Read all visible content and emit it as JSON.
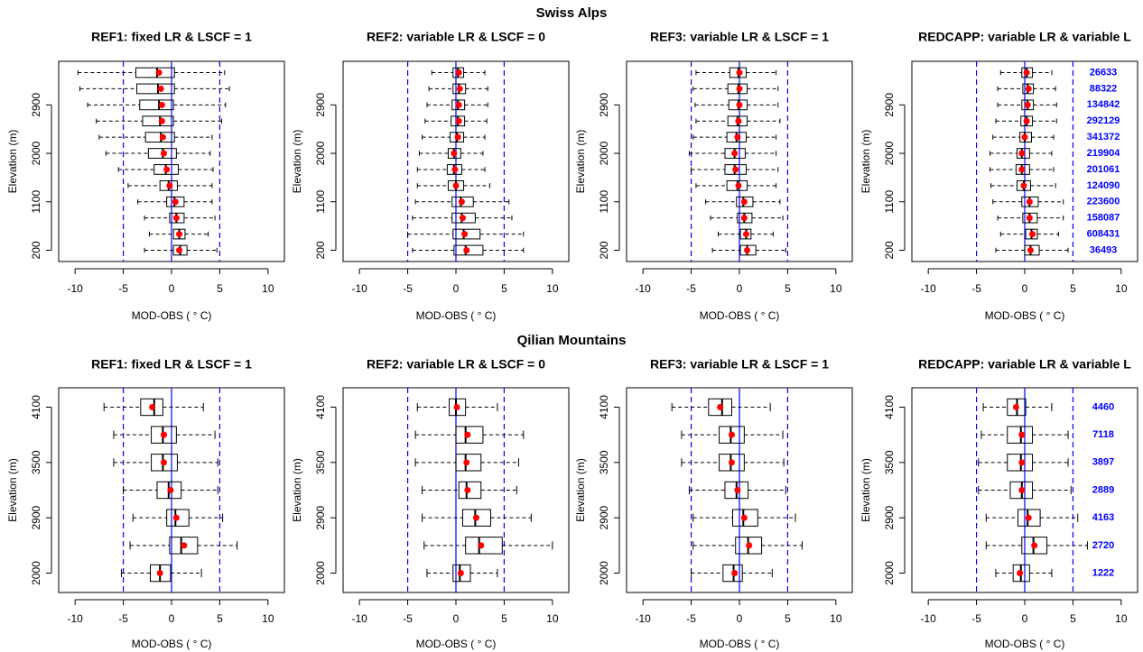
{
  "section_titles": [
    "Swiss Alps",
    "Qilian Mountains"
  ],
  "chart_data": [
    {
      "type": "boxplot",
      "title": "REF1: fixed LR & LSCF = 1",
      "xlabel": "MOD-OBS ( ° C)",
      "ylabel": "Elevation (m)",
      "categories": [
        null,
        null,
        "2900",
        null,
        null,
        "2000",
        null,
        null,
        "1100",
        null,
        null,
        "200"
      ],
      "whisker_low": [
        -9.7,
        -9.5,
        -8.7,
        -7.8,
        -7.5,
        -6.8,
        -5.5,
        -4.5,
        -3.5,
        -2.8,
        -2.3,
        -2.8
      ],
      "q1": [
        -3.7,
        -3.6,
        -3.3,
        -3.0,
        -2.7,
        -2.4,
        -1.8,
        -1.2,
        -0.5,
        -0.2,
        0.2,
        0.2
      ],
      "median": [
        -1.5,
        -1.4,
        -1.3,
        -1.2,
        -1.1,
        -0.9,
        -0.6,
        -0.3,
        0.3,
        0.5,
        0.8,
        0.9
      ],
      "q3": [
        0.3,
        0.3,
        0.2,
        0.2,
        0.3,
        0.5,
        0.7,
        0.6,
        1.3,
        1.3,
        1.4,
        1.6
      ],
      "whisker_high": [
        5.5,
        6.0,
        5.6,
        5.2,
        4.2,
        4.0,
        4.3,
        4.2,
        4.2,
        4.5,
        3.8,
        4.7
      ],
      "mean": [
        -1.3,
        -1.1,
        -1.0,
        -1.0,
        -0.9,
        -0.8,
        -0.5,
        -0.2,
        0.4,
        0.5,
        0.8,
        0.8
      ],
      "xlim": [
        -11.7,
        11.7
      ],
      "xticks": [
        -10,
        -5,
        0,
        5,
        10
      ],
      "ref_lines": [
        {
          "value": -5,
          "dashed": true
        },
        {
          "value": 0,
          "dashed": false
        },
        {
          "value": 5,
          "dashed": true
        }
      ],
      "ref_color": "#0000ff",
      "mean_color": "#ff0000",
      "box_color": "#000000"
    },
    {
      "type": "boxplot",
      "title": "REF2: variable LR & LSCF = 0",
      "xlabel": "MOD-OBS ( ° C)",
      "ylabel": "Elevation (m)",
      "categories": [
        null,
        null,
        "2900",
        null,
        null,
        "2000",
        null,
        null,
        "1100",
        null,
        null,
        "200"
      ],
      "whisker_low": [
        -2.5,
        -2.8,
        -3.0,
        -3.2,
        -3.5,
        -3.8,
        -4.0,
        -4.0,
        -4.2,
        -4.5,
        -5.0,
        -4.5
      ],
      "q1": [
        -0.3,
        -0.3,
        -0.4,
        -0.5,
        -0.6,
        -0.8,
        -0.9,
        -0.8,
        -0.4,
        -0.4,
        -0.3,
        -0.2
      ],
      "median": [
        0.2,
        0.3,
        0.2,
        0.2,
        0.1,
        -0.2,
        -0.2,
        0.0,
        0.5,
        0.6,
        0.8,
        1.0
      ],
      "q3": [
        0.8,
        1.0,
        0.9,
        0.9,
        0.8,
        0.5,
        0.6,
        0.8,
        1.8,
        2.0,
        2.5,
        2.8
      ],
      "whisker_high": [
        3.0,
        3.3,
        3.3,
        3.2,
        3.0,
        2.8,
        3.0,
        3.5,
        5.5,
        5.8,
        7.0,
        7.0
      ],
      "mean": [
        0.3,
        0.4,
        0.3,
        0.3,
        0.2,
        -0.2,
        -0.1,
        0.0,
        0.6,
        0.7,
        0.9,
        1.1
      ],
      "xlim": [
        -11.7,
        11.7
      ],
      "xticks": [
        -10,
        -5,
        0,
        5,
        10
      ],
      "ref_lines": [
        {
          "value": -5,
          "dashed": true
        },
        {
          "value": 0,
          "dashed": false
        },
        {
          "value": 5,
          "dashed": true
        }
      ],
      "ref_color": "#0000ff",
      "mean_color": "#ff0000",
      "box_color": "#000000"
    },
    {
      "type": "boxplot",
      "title": "REF3: variable LR & LSCF = 1",
      "xlabel": "MOD-OBS ( ° C)",
      "ylabel": "Elevation (m)",
      "categories": [
        null,
        null,
        "2900",
        null,
        null,
        "2000",
        null,
        null,
        "1100",
        null,
        null,
        "200"
      ],
      "whisker_low": [
        -4.5,
        -4.8,
        -4.6,
        -4.5,
        -4.8,
        -5.2,
        -5.0,
        -4.5,
        -3.5,
        -3.0,
        -2.2,
        -2.8
      ],
      "q1": [
        -1.0,
        -1.2,
        -1.1,
        -1.2,
        -1.3,
        -1.5,
        -1.5,
        -1.3,
        -0.3,
        -0.2,
        0.1,
        0.1
      ],
      "median": [
        -0.1,
        -0.1,
        -0.1,
        -0.2,
        -0.3,
        -0.5,
        -0.5,
        -0.2,
        0.4,
        0.5,
        0.7,
        0.8
      ],
      "q3": [
        0.7,
        0.8,
        0.8,
        0.8,
        0.7,
        0.6,
        0.7,
        0.8,
        1.4,
        1.3,
        1.2,
        1.7
      ],
      "whisker_high": [
        3.8,
        4.0,
        4.0,
        4.2,
        3.8,
        3.8,
        4.0,
        3.8,
        4.2,
        4.5,
        3.5,
        4.8
      ],
      "mean": [
        0.0,
        0.0,
        0.0,
        -0.1,
        -0.2,
        -0.5,
        -0.4,
        -0.1,
        0.5,
        0.5,
        0.7,
        0.8
      ],
      "xlim": [
        -11.7,
        11.7
      ],
      "xticks": [
        -10,
        -5,
        0,
        5,
        10
      ],
      "ref_lines": [
        {
          "value": -5,
          "dashed": true
        },
        {
          "value": 0,
          "dashed": false
        },
        {
          "value": 5,
          "dashed": true
        }
      ],
      "ref_color": "#0000ff",
      "mean_color": "#ff0000",
      "box_color": "#000000"
    },
    {
      "type": "boxplot",
      "title": "REDCAPP: variable LR & variable L",
      "xlabel": "MOD-OBS ( ° C)",
      "ylabel": "Elevation (m)",
      "categories": [
        null,
        null,
        "2900",
        null,
        null,
        "2000",
        null,
        null,
        "1100",
        null,
        null,
        "200"
      ],
      "whisker_low": [
        -2.5,
        -2.8,
        -2.8,
        -3.0,
        -3.3,
        -3.6,
        -3.6,
        -3.5,
        -3.3,
        -2.8,
        -2.5,
        -3.0
      ],
      "q1": [
        -0.3,
        -0.2,
        -0.3,
        -0.4,
        -0.5,
        -0.8,
        -0.9,
        -0.8,
        -0.3,
        -0.2,
        0.1,
        0.0
      ],
      "median": [
        0.2,
        0.3,
        0.3,
        0.2,
        0.0,
        -0.3,
        -0.3,
        -0.1,
        0.5,
        0.5,
        0.7,
        0.6
      ],
      "q3": [
        0.8,
        0.9,
        0.9,
        0.8,
        0.7,
        0.5,
        0.5,
        0.6,
        1.4,
        1.3,
        1.3,
        1.5
      ],
      "whisker_high": [
        2.8,
        3.2,
        3.3,
        3.3,
        3.0,
        2.8,
        3.0,
        3.2,
        4.0,
        4.0,
        3.5,
        4.5
      ],
      "mean": [
        0.2,
        0.4,
        0.3,
        0.2,
        0.0,
        -0.3,
        -0.3,
        -0.1,
        0.5,
        0.5,
        0.8,
        0.6
      ],
      "counts": [
        26633,
        88322,
        134842,
        292129,
        341372,
        219904,
        201061,
        124090,
        223600,
        158087,
        608431,
        36493
      ],
      "count_color": "#0000ff",
      "xlim": [
        -11.7,
        11.7
      ],
      "xticks": [
        -10,
        -5,
        0,
        5,
        10
      ],
      "ref_lines": [
        {
          "value": -5,
          "dashed": true
        },
        {
          "value": 0,
          "dashed": false
        },
        {
          "value": 5,
          "dashed": true
        }
      ],
      "ref_color": "#0000ff",
      "mean_color": "#ff0000",
      "box_color": "#000000"
    },
    {
      "type": "boxplot",
      "title": "REF1: fixed LR & LSCF = 1",
      "xlabel": "MOD-OBS ( ° C)",
      "ylabel": "Elevation (m)",
      "categories": [
        "4100",
        null,
        "3500",
        null,
        "2900",
        null,
        "2000"
      ],
      "whisker_low": [
        -7.0,
        -6.0,
        -6.0,
        -5.0,
        -4.0,
        -4.3,
        -5.2
      ],
      "q1": [
        -3.2,
        -2.1,
        -2.1,
        -1.5,
        -0.5,
        -0.2,
        -2.2
      ],
      "median": [
        -1.8,
        -0.9,
        -0.9,
        -0.3,
        0.4,
        1.0,
        -1.2
      ],
      "q3": [
        -0.9,
        0.5,
        0.6,
        1.0,
        1.8,
        2.7,
        -0.1
      ],
      "whisker_high": [
        3.3,
        4.5,
        4.8,
        4.8,
        5.3,
        6.8,
        3.1
      ],
      "mean": [
        -2.0,
        -0.8,
        -0.8,
        -0.1,
        0.5,
        1.3,
        -1.2
      ],
      "xlim": [
        -11.7,
        11.7
      ],
      "xticks": [
        -10,
        -5,
        0,
        5,
        10
      ],
      "ref_lines": [
        {
          "value": -5,
          "dashed": true
        },
        {
          "value": 0,
          "dashed": false
        },
        {
          "value": 5,
          "dashed": true
        }
      ],
      "ref_color": "#0000ff",
      "mean_color": "#ff0000",
      "box_color": "#000000"
    },
    {
      "type": "boxplot",
      "title": "REF2: variable LR & LSCF = 0",
      "xlabel": "MOD-OBS ( ° C)",
      "ylabel": "Elevation (m)",
      "categories": [
        "4100",
        null,
        "3500",
        null,
        "2900",
        null,
        "2000"
      ],
      "whisker_low": [
        -4.0,
        -4.2,
        -4.2,
        -3.5,
        -3.5,
        -3.3,
        -3.0
      ],
      "q1": [
        -0.7,
        0.0,
        0.0,
        0.3,
        0.7,
        1.0,
        -0.3
      ],
      "median": [
        0.0,
        1.0,
        1.0,
        1.1,
        2.0,
        2.4,
        0.4
      ],
      "q3": [
        1.0,
        2.8,
        2.6,
        2.6,
        3.6,
        4.8,
        1.5
      ],
      "whisker_high": [
        4.3,
        7.0,
        6.5,
        6.3,
        7.8,
        10.0,
        4.3
      ],
      "mean": [
        0.1,
        1.2,
        1.1,
        1.2,
        2.1,
        2.6,
        0.5
      ],
      "xlim": [
        -11.7,
        11.7
      ],
      "xticks": [
        -10,
        -5,
        0,
        5,
        10
      ],
      "ref_lines": [
        {
          "value": -5,
          "dashed": true
        },
        {
          "value": 0,
          "dashed": false
        },
        {
          "value": 5,
          "dashed": true
        }
      ],
      "ref_color": "#0000ff",
      "mean_color": "#ff0000",
      "box_color": "#000000"
    },
    {
      "type": "boxplot",
      "title": "REF3: variable LR & LSCF = 1",
      "xlabel": "MOD-OBS ( ° C)",
      "ylabel": "Elevation (m)",
      "categories": [
        "4100",
        null,
        "3500",
        null,
        "2900",
        null,
        "2000"
      ],
      "whisker_low": [
        -7.0,
        -6.0,
        -6.0,
        -5.2,
        -4.8,
        -4.8,
        -5.0
      ],
      "q1": [
        -3.2,
        -2.1,
        -2.1,
        -1.5,
        -0.7,
        -0.4,
        -1.7
      ],
      "median": [
        -1.8,
        -0.9,
        -0.9,
        -0.3,
        0.4,
        0.9,
        -0.6
      ],
      "q3": [
        -0.8,
        0.5,
        0.5,
        0.9,
        1.9,
        2.3,
        0.3
      ],
      "whisker_high": [
        3.2,
        4.5,
        4.6,
        4.8,
        5.8,
        6.5,
        3.4
      ],
      "mean": [
        -2.0,
        -0.8,
        -0.8,
        -0.2,
        0.5,
        1.0,
        -0.5
      ],
      "xlim": [
        -11.7,
        11.7
      ],
      "xticks": [
        -10,
        -5,
        0,
        5,
        10
      ],
      "ref_lines": [
        {
          "value": -5,
          "dashed": true
        },
        {
          "value": 0,
          "dashed": false
        },
        {
          "value": 5,
          "dashed": true
        }
      ],
      "ref_color": "#0000ff",
      "mean_color": "#ff0000",
      "box_color": "#000000"
    },
    {
      "type": "boxplot",
      "title": "REDCAPP: variable LR & variable L",
      "xlabel": "MOD-OBS ( ° C)",
      "ylabel": "Elevation (m)",
      "categories": [
        "4100",
        null,
        "3500",
        null,
        "2900",
        null,
        "2000"
      ],
      "whisker_low": [
        -4.3,
        -4.5,
        -4.8,
        -4.8,
        -4.0,
        -4.0,
        -3.0
      ],
      "q1": [
        -1.8,
        -1.8,
        -1.8,
        -1.5,
        -0.7,
        -0.3,
        -1.2
      ],
      "median": [
        -0.8,
        -0.4,
        -0.4,
        -0.3,
        0.3,
        0.9,
        -0.4
      ],
      "q3": [
        0.1,
        0.8,
        0.8,
        0.8,
        1.6,
        2.3,
        0.5
      ],
      "whisker_high": [
        2.8,
        4.5,
        4.5,
        4.8,
        5.5,
        6.5,
        2.8
      ],
      "mean": [
        -0.9,
        -0.3,
        -0.3,
        -0.3,
        0.4,
        1.0,
        -0.5
      ],
      "counts": [
        4460,
        7118,
        3897,
        2889,
        4163,
        2720,
        1222
      ],
      "count_color": "#0000ff",
      "xlim": [
        -11.7,
        11.7
      ],
      "xticks": [
        -10,
        -5,
        0,
        5,
        10
      ],
      "ref_lines": [
        {
          "value": -5,
          "dashed": true
        },
        {
          "value": 0,
          "dashed": false
        },
        {
          "value": 5,
          "dashed": true
        }
      ],
      "ref_color": "#0000ff",
      "mean_color": "#ff0000",
      "box_color": "#000000"
    }
  ]
}
